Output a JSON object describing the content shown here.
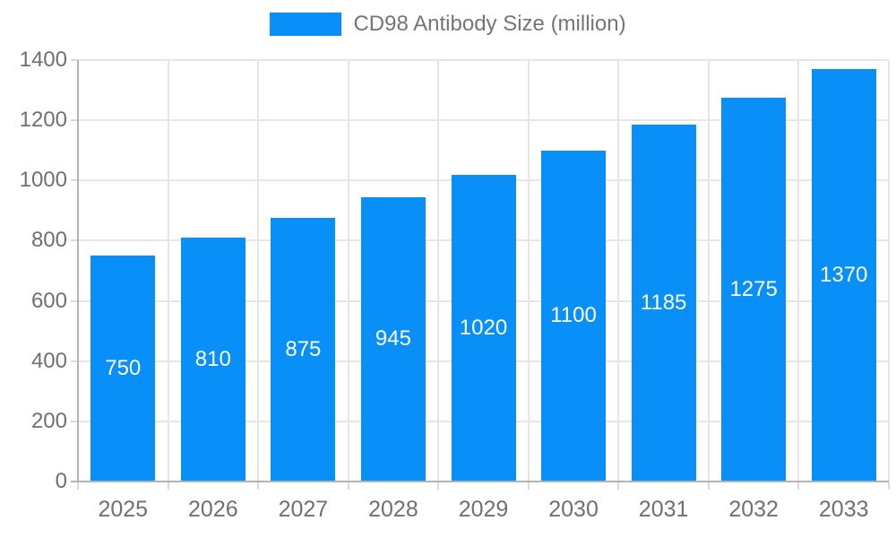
{
  "chart_data": {
    "type": "bar",
    "title": "CD98 Antibody Size (million)",
    "categories": [
      "2025",
      "2026",
      "2027",
      "2028",
      "2029",
      "2030",
      "2031",
      "2032",
      "2033"
    ],
    "series": [
      {
        "name": "CD98 Antibody Size (million)",
        "values": [
          750,
          810,
          875,
          945,
          1020,
          1100,
          1185,
          1275,
          1370
        ]
      }
    ],
    "bar_labels": [
      "750",
      "810",
      "875",
      "945",
      "1020",
      "1100",
      "1185",
      "1275",
      "1370"
    ],
    "xlabel": "",
    "ylabel": "",
    "ylim": [
      0,
      1400
    ],
    "yticks": [
      0,
      200,
      400,
      600,
      800,
      1000,
      1200,
      1400
    ],
    "grid": "horizontal+vertical",
    "legend_position": "top-center",
    "colors": {
      "bar": "#0890f8",
      "bar_label": "#ffffff",
      "grid": "#e6e6e6",
      "axis": "#b3b3b3",
      "tick": "#d9d9d9",
      "tick_text": "#707070",
      "legend_text": "#757575"
    }
  }
}
